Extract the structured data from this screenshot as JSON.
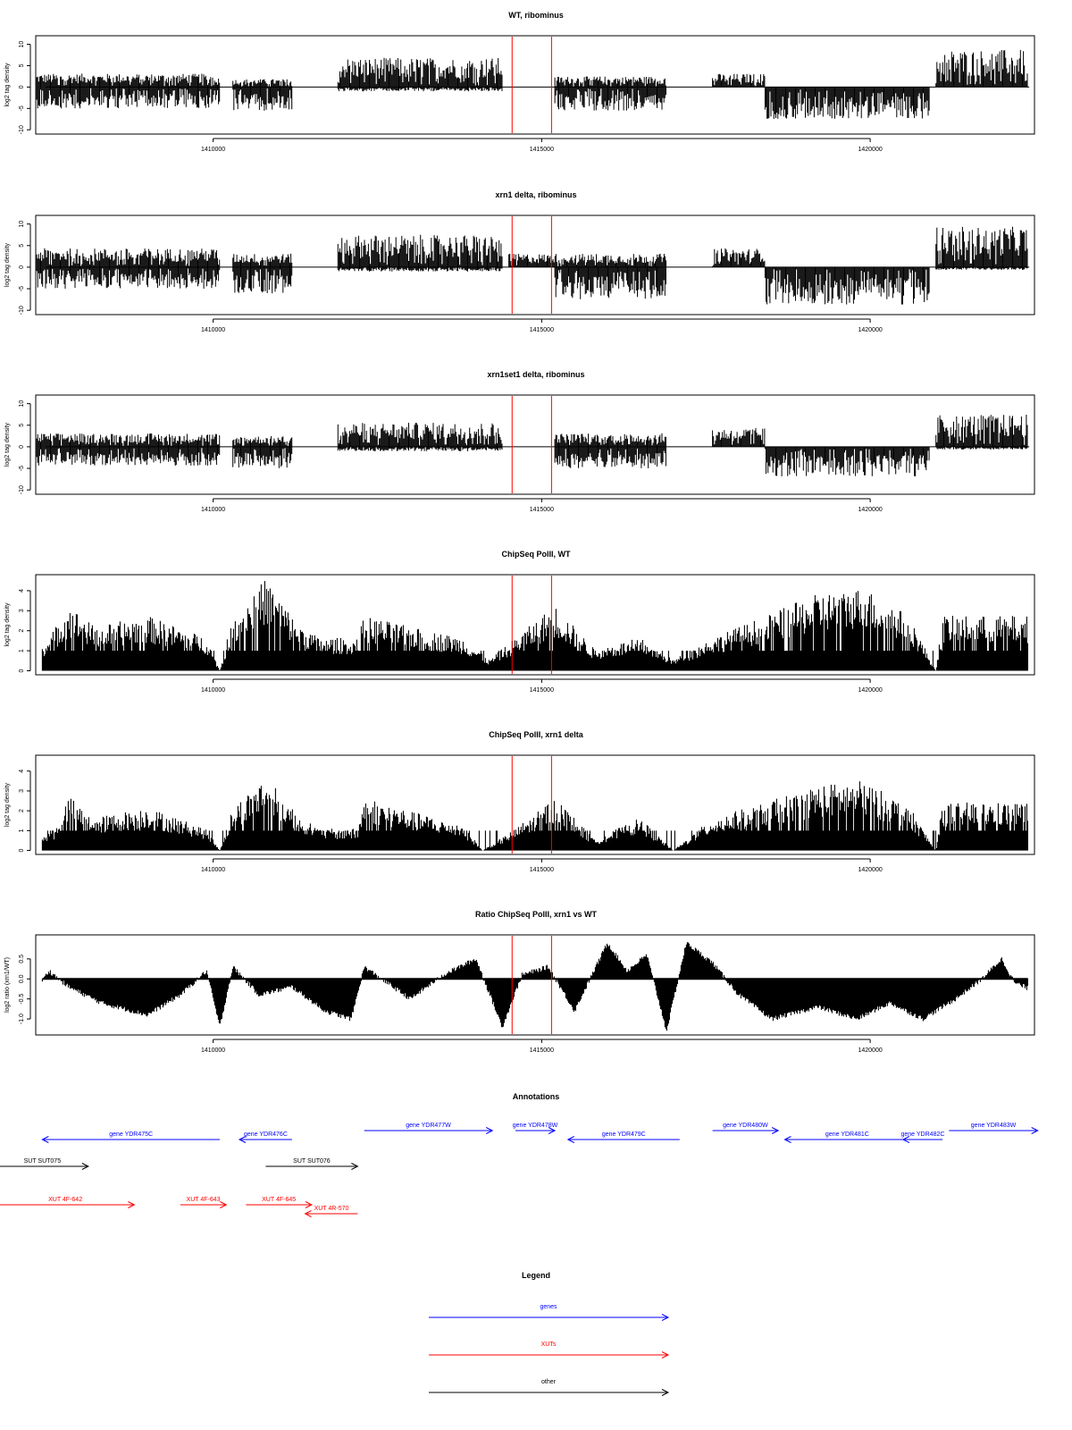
{
  "chart_data": [
    {
      "type": "area",
      "title": "WT, ribominus",
      "ylabel": "log2 tag density",
      "xlim": [
        1407300,
        1422500
      ],
      "ylim": [
        -11,
        12
      ],
      "yticks": [
        -10,
        -5,
        0,
        5,
        10
      ],
      "xticks": [
        1410000,
        1415000,
        1420000
      ],
      "xtick_labels": [
        "1410000",
        "1415000",
        "1420000"
      ],
      "red_lines": [
        1414550,
        1415150
      ],
      "fill": "#000000",
      "series": [
        {
          "strand": "+",
          "segments": [
            [
              1407300,
              1410100,
              2.5
            ],
            [
              1410300,
              1411200,
              1.5
            ],
            [
              1411900,
              1414400,
              5.5
            ],
            [
              1415200,
              1416900,
              2
            ],
            [
              1417600,
              1418400,
              2.5
            ],
            [
              1421000,
              1422400,
              7
            ]
          ]
        },
        {
          "strand": "-",
          "segments": [
            [
              1407300,
              1410100,
              -4
            ],
            [
              1410300,
              1411200,
              -4.5
            ],
            [
              1411900,
              1414400,
              -0.8
            ],
            [
              1415200,
              1416900,
              -4.5
            ],
            [
              1418400,
              1420900,
              -6
            ],
            [
              1421000,
              1422400,
              0
            ]
          ]
        }
      ]
    },
    {
      "type": "area",
      "title": "xrn1 delta, ribominus",
      "ylabel": "log2 tag density",
      "xlim": [
        1407300,
        1422500
      ],
      "ylim": [
        -11,
        12
      ],
      "yticks": [
        -10,
        -5,
        0,
        5,
        10
      ],
      "xticks": [
        1410000,
        1415000,
        1420000
      ],
      "xtick_labels": [
        "1410000",
        "1415000",
        "1420000"
      ],
      "red_lines": [
        1414550,
        1415150
      ],
      "fill": "#000000",
      "series": [
        {
          "strand": "+",
          "segments": [
            [
              1407300,
              1410100,
              3.5
            ],
            [
              1410300,
              1411200,
              2.5
            ],
            [
              1411900,
              1414400,
              6
            ],
            [
              1414500,
              1416900,
              2.5
            ],
            [
              1417600,
              1418400,
              3.5
            ],
            [
              1421000,
              1422400,
              7.5
            ]
          ]
        },
        {
          "strand": "-",
          "segments": [
            [
              1407300,
              1410100,
              -4
            ],
            [
              1410300,
              1411200,
              -5
            ],
            [
              1411900,
              1414400,
              -0.8
            ],
            [
              1415200,
              1416900,
              -6
            ],
            [
              1418400,
              1420900,
              -7
            ],
            [
              1421000,
              1422400,
              -0.5
            ]
          ]
        }
      ]
    },
    {
      "type": "area",
      "title": "xrn1set1 delta, ribominus",
      "ylabel": "log2 tag density",
      "xlim": [
        1407300,
        1422500
      ],
      "ylim": [
        -11,
        12
      ],
      "yticks": [
        -10,
        -5,
        0,
        5,
        10
      ],
      "xticks": [
        1410000,
        1415000,
        1420000
      ],
      "xtick_labels": [
        "1410000",
        "1415000",
        "1420000"
      ],
      "red_lines": [
        1414550,
        1415150
      ],
      "fill": "#000000",
      "series": [
        {
          "strand": "+",
          "segments": [
            [
              1407300,
              1410100,
              2.5
            ],
            [
              1410300,
              1411200,
              2
            ],
            [
              1411900,
              1414400,
              4.5
            ],
            [
              1415200,
              1416900,
              2.5
            ],
            [
              1417600,
              1418400,
              3.5
            ],
            [
              1421000,
              1422400,
              6
            ]
          ]
        },
        {
          "strand": "-",
          "segments": [
            [
              1407300,
              1410100,
              -3.5
            ],
            [
              1410300,
              1411200,
              -4
            ],
            [
              1411900,
              1414400,
              -0.8
            ],
            [
              1415200,
              1416900,
              -4
            ],
            [
              1418400,
              1420900,
              -5.5
            ],
            [
              1421000,
              1422400,
              -0.5
            ]
          ]
        }
      ]
    },
    {
      "type": "area",
      "title": "ChipSeq PolII, WT",
      "ylabel": "log2 tag density",
      "xlim": [
        1407300,
        1422500
      ],
      "ylim": [
        -0.2,
        4.8
      ],
      "yticks": [
        0,
        1,
        2,
        3,
        4
      ],
      "xticks": [
        1410000,
        1415000,
        1420000
      ],
      "xtick_labels": [
        "1410000",
        "1415000",
        "1420000"
      ],
      "red_lines": [
        1414550,
        1415150
      ],
      "fill": "#000000",
      "profile": [
        [
          1407300,
          1
        ],
        [
          1407500,
          1.5
        ],
        [
          1407800,
          3
        ],
        [
          1408200,
          2
        ],
        [
          1409000,
          2.5
        ],
        [
          1409900,
          1.5
        ],
        [
          1410100,
          0
        ],
        [
          1410300,
          2.5
        ],
        [
          1410800,
          4.2
        ],
        [
          1411200,
          2.5
        ],
        [
          1411600,
          1.5
        ],
        [
          1412200,
          1.5
        ],
        [
          1412300,
          2.5
        ],
        [
          1413000,
          2
        ],
        [
          1413800,
          1.5
        ],
        [
          1414200,
          0.5
        ],
        [
          1414600,
          1.5
        ],
        [
          1415200,
          3
        ],
        [
          1415800,
          1
        ],
        [
          1416500,
          1.5
        ],
        [
          1417000,
          0.5
        ],
        [
          1417600,
          1.5
        ],
        [
          1418400,
          2.5
        ],
        [
          1419200,
          3.5
        ],
        [
          1419900,
          3.8
        ],
        [
          1420600,
          2.5
        ],
        [
          1421000,
          0
        ],
        [
          1421100,
          2.5
        ],
        [
          1422400,
          2.5
        ],
        [
          1422500,
          0
        ]
      ]
    },
    {
      "type": "area",
      "title": "ChipSeq PolII, xrn1 delta",
      "ylabel": "log2 tag density",
      "xlim": [
        1407300,
        1422500
      ],
      "ylim": [
        -0.2,
        4.8
      ],
      "yticks": [
        0,
        1,
        2,
        3,
        4
      ],
      "xticks": [
        1410000,
        1415000,
        1420000
      ],
      "xtick_labels": [
        "1410000",
        "1415000",
        "1420000"
      ],
      "red_lines": [
        1414550,
        1415150
      ],
      "fill": "#000000",
      "profile": [
        [
          1407300,
          0.5
        ],
        [
          1407600,
          1
        ],
        [
          1407800,
          2.5
        ],
        [
          1408200,
          1.5
        ],
        [
          1409000,
          2
        ],
        [
          1409900,
          1
        ],
        [
          1410100,
          0
        ],
        [
          1410300,
          2
        ],
        [
          1410800,
          3.4
        ],
        [
          1411200,
          2
        ],
        [
          1411600,
          1
        ],
        [
          1412200,
          1
        ],
        [
          1412300,
          2.5
        ],
        [
          1413000,
          1.8
        ],
        [
          1413800,
          1.2
        ],
        [
          1414100,
          0
        ],
        [
          1414600,
          1
        ],
        [
          1415200,
          2.5
        ],
        [
          1415800,
          0.5
        ],
        [
          1416500,
          1.5
        ],
        [
          1417000,
          0
        ],
        [
          1417600,
          1.5
        ],
        [
          1418400,
          2.2
        ],
        [
          1419200,
          3
        ],
        [
          1419900,
          3.2
        ],
        [
          1420600,
          2
        ],
        [
          1421000,
          0
        ],
        [
          1421100,
          2.2
        ],
        [
          1422400,
          2.2
        ],
        [
          1422500,
          0
        ]
      ]
    },
    {
      "type": "area",
      "title": "Ratio ChipSeq PolII, xrn1 vs WT",
      "ylabel": "log2 ratio (xrn1/WT)",
      "xlim": [
        1407300,
        1422500
      ],
      "ylim": [
        -1.4,
        1.1
      ],
      "yticks": [
        -1.0,
        -0.5,
        0.0,
        0.5
      ],
      "ytick_labels": [
        "-1.0",
        "-0.5",
        "0.0",
        "0.5"
      ],
      "xticks": [
        1410000,
        1415000,
        1420000
      ],
      "xtick_labels": [
        "1410000",
        "1415000",
        "1420000"
      ],
      "red_lines": [
        1414550,
        1415150
      ],
      "fill": "#000000",
      "profile": [
        [
          1407300,
          -0.3
        ],
        [
          1407500,
          0.2
        ],
        [
          1407800,
          -0.2
        ],
        [
          1408300,
          -0.6
        ],
        [
          1409000,
          -0.9
        ],
        [
          1409500,
          -0.4
        ],
        [
          1409900,
          0.2
        ],
        [
          1410100,
          -1.2
        ],
        [
          1410300,
          0.3
        ],
        [
          1410700,
          -0.4
        ],
        [
          1411200,
          -0.2
        ],
        [
          1411700,
          -0.8
        ],
        [
          1412100,
          -1.0
        ],
        [
          1412300,
          0.3
        ],
        [
          1413000,
          -0.5
        ],
        [
          1413500,
          0.1
        ],
        [
          1414000,
          0.5
        ],
        [
          1414400,
          -1.2
        ],
        [
          1414700,
          0.1
        ],
        [
          1415100,
          0.3
        ],
        [
          1415500,
          -0.8
        ],
        [
          1416000,
          0.9
        ],
        [
          1416300,
          0.2
        ],
        [
          1416600,
          0.6
        ],
        [
          1416900,
          -1.3
        ],
        [
          1417200,
          0.9
        ],
        [
          1417600,
          0.4
        ],
        [
          1418000,
          -0.4
        ],
        [
          1418500,
          -1.0
        ],
        [
          1419200,
          -0.7
        ],
        [
          1419800,
          -1.0
        ],
        [
          1420300,
          -0.6
        ],
        [
          1420800,
          -1.0
        ],
        [
          1421300,
          -0.5
        ],
        [
          1421700,
          0.0
        ],
        [
          1422000,
          0.5
        ],
        [
          1422200,
          -0.1
        ],
        [
          1422500,
          -0.3
        ]
      ]
    }
  ],
  "annotations": {
    "title": "Annotations",
    "features": [
      {
        "label": "gene YDR475C",
        "start": 1407400,
        "end": 1410100,
        "strand": "-",
        "type": "gene",
        "row": 0
      },
      {
        "label": "gene YDR476C",
        "start": 1410400,
        "end": 1411200,
        "strand": "-",
        "type": "gene",
        "row": 0
      },
      {
        "label": "gene YDR477W",
        "start": 1412300,
        "end": 1414250,
        "strand": "+",
        "type": "gene",
        "row": -1
      },
      {
        "label": "gene YDR478W",
        "start": 1414600,
        "end": 1415200,
        "strand": "+",
        "type": "gene",
        "row": -1
      },
      {
        "label": "gene YDR479C",
        "start": 1415400,
        "end": 1417100,
        "strand": "-",
        "type": "gene",
        "row": 0
      },
      {
        "label": "gene YDR480W",
        "start": 1417600,
        "end": 1418600,
        "strand": "+",
        "type": "gene",
        "row": -1
      },
      {
        "label": "gene YDR481C",
        "start": 1418700,
        "end": 1420600,
        "strand": "-",
        "type": "gene",
        "row": 0
      },
      {
        "label": "gene YDR482C",
        "start": 1420500,
        "end": 1421100,
        "strand": "-",
        "type": "gene",
        "row": 0
      },
      {
        "label": "gene YDR483W",
        "start": 1421200,
        "end": 1422550,
        "strand": "+",
        "type": "gene",
        "row": -1
      },
      {
        "label": "SUT SUT075",
        "start": 1406700,
        "end": 1408100,
        "strand": "+",
        "type": "other",
        "row": 1
      },
      {
        "label": "SUT SUT076",
        "start": 1410800,
        "end": 1412200,
        "strand": "+",
        "type": "other",
        "row": 1
      },
      {
        "label": "XUT 4F-642",
        "start": 1406700,
        "end": 1408800,
        "strand": "+",
        "type": "xut",
        "row": 2
      },
      {
        "label": "XUT 4F-643",
        "start": 1409500,
        "end": 1410200,
        "strand": "+",
        "type": "xut",
        "row": 2
      },
      {
        "label": "XUT 4F-645",
        "start": 1410500,
        "end": 1411500,
        "strand": "+",
        "type": "xut",
        "row": 2
      },
      {
        "label": "XUT 4R-570",
        "start": 1411400,
        "end": 1412200,
        "strand": "-",
        "type": "xut",
        "row": 3
      }
    ]
  },
  "legend": {
    "title": "Legend",
    "items": [
      {
        "label": "genes",
        "type": "gene"
      },
      {
        "label": "XUTs",
        "type": "xut"
      },
      {
        "label": "other",
        "type": "other"
      }
    ]
  },
  "colors": {
    "gene": "#0000ff",
    "xut": "#ff0000",
    "other": "#000000",
    "marker": "#ff0000",
    "bars": "#000000"
  }
}
